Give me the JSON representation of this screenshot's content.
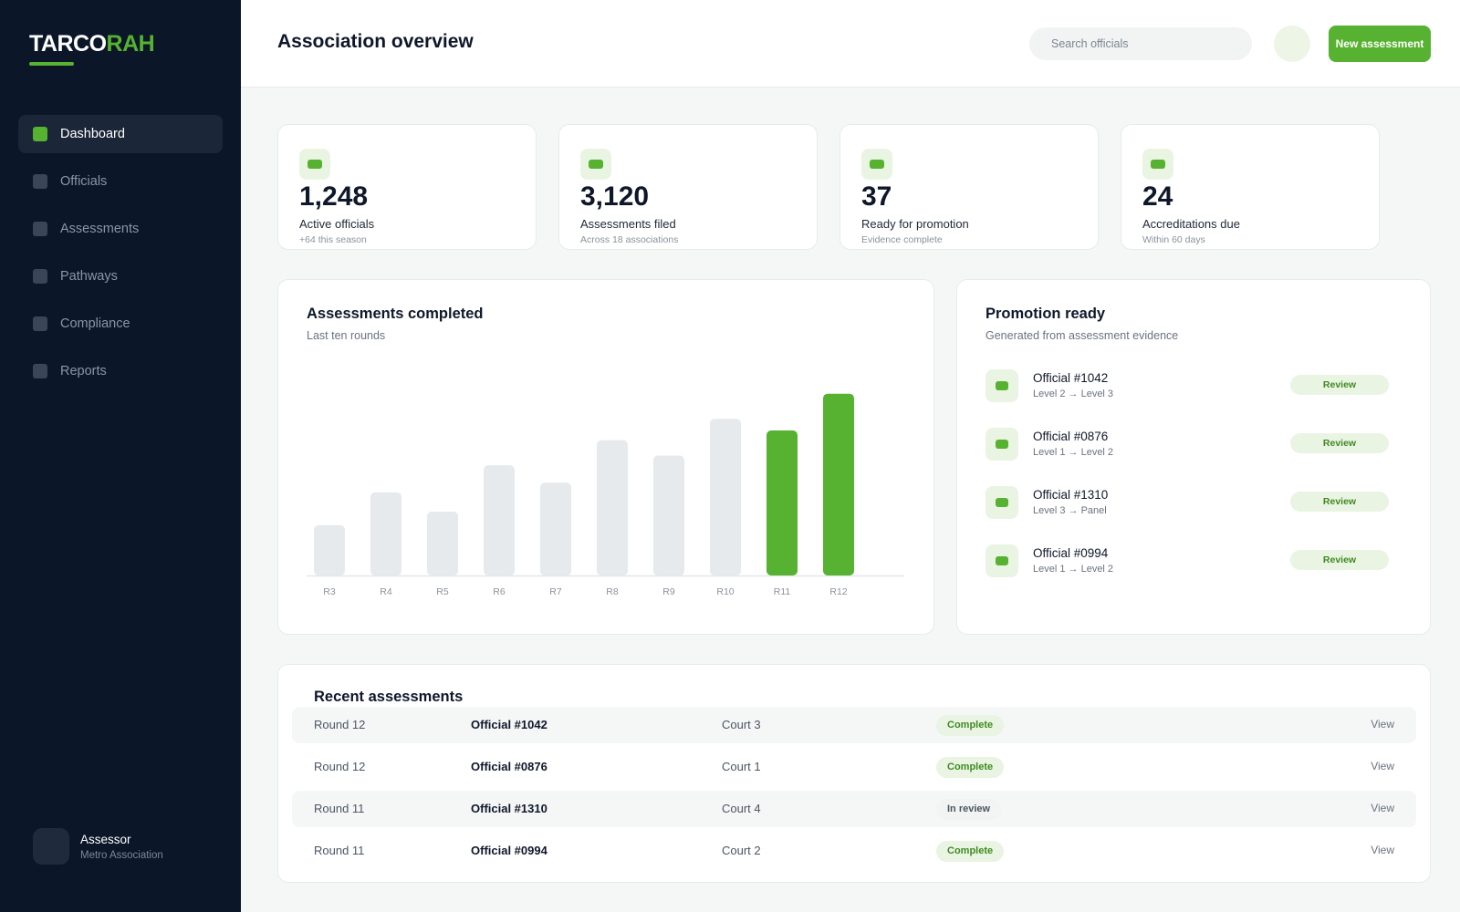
{
  "brand": {
    "logo_part1": "TARCO",
    "logo_part2": "RAH",
    "accent": "#56b230"
  },
  "sidebar": {
    "items": [
      {
        "label": "Dashboard",
        "active": true
      },
      {
        "label": "Officials",
        "active": false
      },
      {
        "label": "Assessments",
        "active": false
      },
      {
        "label": "Pathways",
        "active": false
      },
      {
        "label": "Compliance",
        "active": false
      },
      {
        "label": "Reports",
        "active": false
      }
    ],
    "user": {
      "name": "Assessor",
      "org": "Metro Association"
    }
  },
  "header": {
    "title": "Association overview",
    "search_placeholder": "Search officials",
    "new_button": "New assessment"
  },
  "stats": [
    {
      "value": "1,248",
      "label": "Active officials",
      "sub": "+64 this season"
    },
    {
      "value": "3,120",
      "label": "Assessments filed",
      "sub": "Across 18 associations"
    },
    {
      "value": "37",
      "label": "Ready for promotion",
      "sub": "Evidence complete"
    },
    {
      "value": "24",
      "label": "Accreditations due",
      "sub": "Within 60 days"
    }
  ],
  "chart": {
    "title": "Assessments completed",
    "subtitle": "Last ten rounds"
  },
  "chart_data": {
    "type": "bar",
    "categories": [
      "R3",
      "R4",
      "R5",
      "R6",
      "R7",
      "R8",
      "R9",
      "R10",
      "R11",
      "R12"
    ],
    "values": [
      26,
      43,
      33,
      57,
      48,
      70,
      62,
      81,
      75,
      94
    ],
    "highlighted": [
      "R11",
      "R12"
    ],
    "ylim": [
      0,
      100
    ],
    "grid": false,
    "colors": {
      "bar": "#e6eaed",
      "highlight": "#56b230"
    }
  },
  "promotion": {
    "title": "Promotion ready",
    "subtitle": "Generated from assessment evidence",
    "items": [
      {
        "name": "Official #1042",
        "path": "Level 2 → Level 3",
        "action": "Review"
      },
      {
        "name": "Official #0876",
        "path": "Level 1 → Level 2",
        "action": "Review"
      },
      {
        "name": "Official #1310",
        "path": "Level 3 → Panel",
        "action": "Review"
      },
      {
        "name": "Official #0994",
        "path": "Level 1 → Level 2",
        "action": "Review"
      }
    ]
  },
  "recent": {
    "title": "Recent assessments",
    "rows": [
      {
        "round": "Round 12",
        "official": "Official #1042",
        "court": "Court 3",
        "status": "Complete",
        "status_type": "complete",
        "action": "View"
      },
      {
        "round": "Round 12",
        "official": "Official #0876",
        "court": "Court 1",
        "status": "Complete",
        "status_type": "complete",
        "action": "View"
      },
      {
        "round": "Round 11",
        "official": "Official #1310",
        "court": "Court 4",
        "status": "In review",
        "status_type": "review",
        "action": "View"
      },
      {
        "round": "Round 11",
        "official": "Official #0994",
        "court": "Court 2",
        "status": "Complete",
        "status_type": "complete",
        "action": "View"
      }
    ]
  }
}
